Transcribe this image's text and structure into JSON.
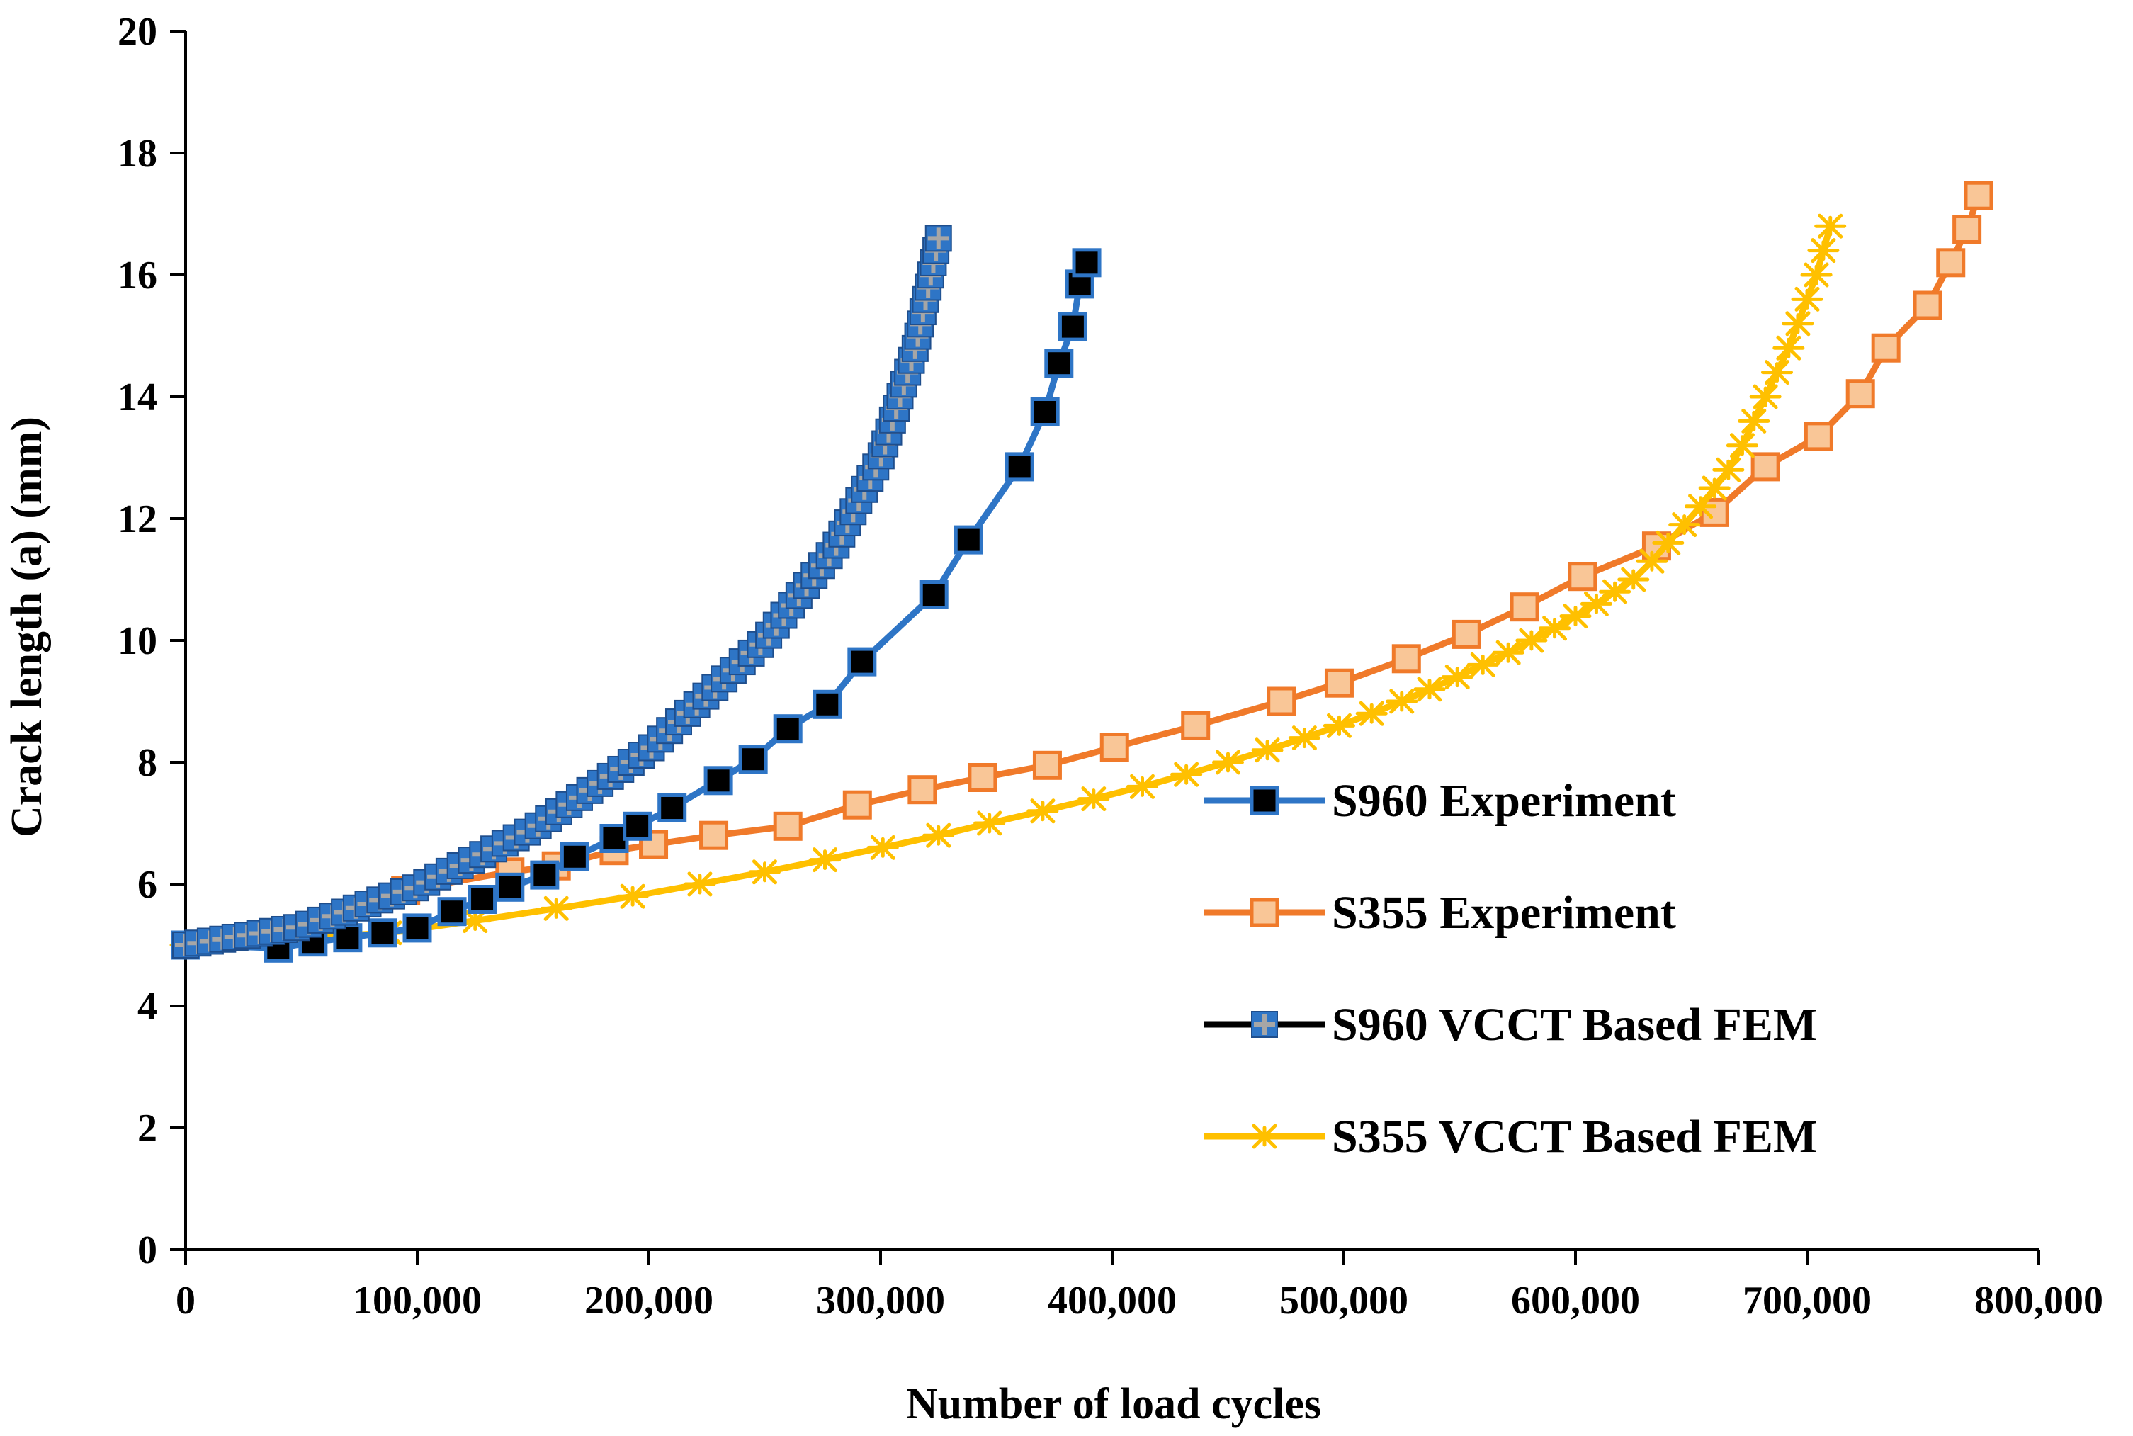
{
  "chart_data": {
    "type": "line",
    "title": "",
    "xlabel": "Number of load cycles",
    "ylabel": "Crack length (a) (mm)",
    "xlim": [
      0,
      800000
    ],
    "ylim": [
      0,
      20
    ],
    "x_ticks": [
      0,
      100000,
      200000,
      300000,
      400000,
      500000,
      600000,
      700000,
      800000
    ],
    "x_tick_labels": [
      "0",
      "100,000",
      "200,000",
      "300,000",
      "400,000",
      "500,000",
      "600,000",
      "700,000",
      "800,000"
    ],
    "y_ticks": [
      0,
      2,
      4,
      6,
      8,
      10,
      12,
      14,
      16,
      18,
      20
    ],
    "y_tick_labels": [
      "0",
      "2",
      "4",
      "6",
      "8",
      "10",
      "12",
      "14",
      "16",
      "18",
      "20"
    ],
    "grid": false,
    "legend_position": "right-middle",
    "colors": {
      "blue": "#2E75C6",
      "orange": "#F07A2A",
      "marker_fill_orange": "#F9C697",
      "yellow": "#FFC000",
      "black": "#000000",
      "gray": "#A6A6A6"
    },
    "series": [
      {
        "name": "S960 Experiment",
        "line_color": "#2E75C6",
        "marker": "square-filled-black",
        "x": [
          0,
          40000,
          55000,
          70000,
          85000,
          100000,
          115000,
          128000,
          140000,
          155000,
          168000,
          185000,
          195000,
          210000,
          230000,
          245000,
          260000,
          277000,
          292000,
          323000,
          338000,
          360000,
          371000,
          377000,
          383000,
          386000,
          389000
        ],
        "y": [
          5.0,
          4.95,
          5.05,
          5.12,
          5.2,
          5.28,
          5.55,
          5.75,
          5.95,
          6.15,
          6.45,
          6.75,
          6.95,
          7.25,
          7.7,
          8.05,
          8.55,
          8.95,
          9.65,
          10.75,
          11.65,
          12.85,
          13.75,
          14.55,
          15.15,
          15.85,
          16.2
        ]
      },
      {
        "name": "S355 Experiment",
        "line_color": "#F07A2A",
        "marker": "square-light-orange",
        "x": [
          0,
          95000,
          140000,
          160000,
          185000,
          202000,
          228000,
          260000,
          290000,
          318000,
          344000,
          372000,
          401000,
          436000,
          473000,
          498000,
          527000,
          553000,
          578000,
          603000,
          635000,
          660000,
          682000,
          705000,
          723000,
          734000,
          752000,
          762000,
          769000,
          774000
        ],
        "y": [
          5.0,
          5.9,
          6.2,
          6.3,
          6.55,
          6.65,
          6.8,
          6.95,
          7.3,
          7.55,
          7.75,
          7.95,
          8.25,
          8.6,
          9.0,
          9.3,
          9.7,
          10.1,
          10.55,
          11.05,
          11.55,
          12.1,
          12.85,
          13.35,
          14.05,
          14.8,
          15.5,
          16.2,
          16.75,
          17.3
        ]
      },
      {
        "name": "S960  VCCT Based FEM",
        "line_color": "#000000",
        "marker": "plus-square-blue",
        "x": [
          0,
          50000,
          100000,
          150000,
          200000,
          250000,
          280000,
          300000,
          315000,
          325000
        ],
        "y": [
          5.0,
          5.3,
          5.95,
          6.9,
          8.2,
          10.0,
          11.5,
          13.0,
          14.8,
          16.6
        ],
        "marker_count": 90
      },
      {
        "name": "S355 VCCT Based FEM",
        "line_color": "#FFC000",
        "marker": "asterisk-yellow",
        "x": [
          0,
          88000,
          125000,
          160000,
          193000,
          222000,
          250000,
          276000,
          301000,
          325000,
          347000,
          370000,
          392000,
          413000,
          432000,
          450000,
          467000,
          483000,
          498000,
          512000,
          525000,
          537000,
          549000,
          560000,
          571000,
          581000,
          591000,
          600000,
          609000,
          617000,
          625000,
          633000,
          640000,
          647000,
          654000,
          660000,
          666000,
          672000,
          677000,
          682000,
          687000,
          692000,
          696000,
          700000,
          704000,
          707000,
          710000
        ],
        "y": [
          5.0,
          5.2,
          5.4,
          5.6,
          5.8,
          6.0,
          6.2,
          6.4,
          6.6,
          6.8,
          7.0,
          7.2,
          7.4,
          7.6,
          7.8,
          8.0,
          8.2,
          8.4,
          8.6,
          8.8,
          9.0,
          9.2,
          9.4,
          9.6,
          9.8,
          10.0,
          10.2,
          10.4,
          10.6,
          10.8,
          11.0,
          11.3,
          11.6,
          11.9,
          12.2,
          12.5,
          12.8,
          13.2,
          13.6,
          14.0,
          14.4,
          14.8,
          15.2,
          15.6,
          16.0,
          16.4,
          16.8
        ]
      }
    ]
  }
}
